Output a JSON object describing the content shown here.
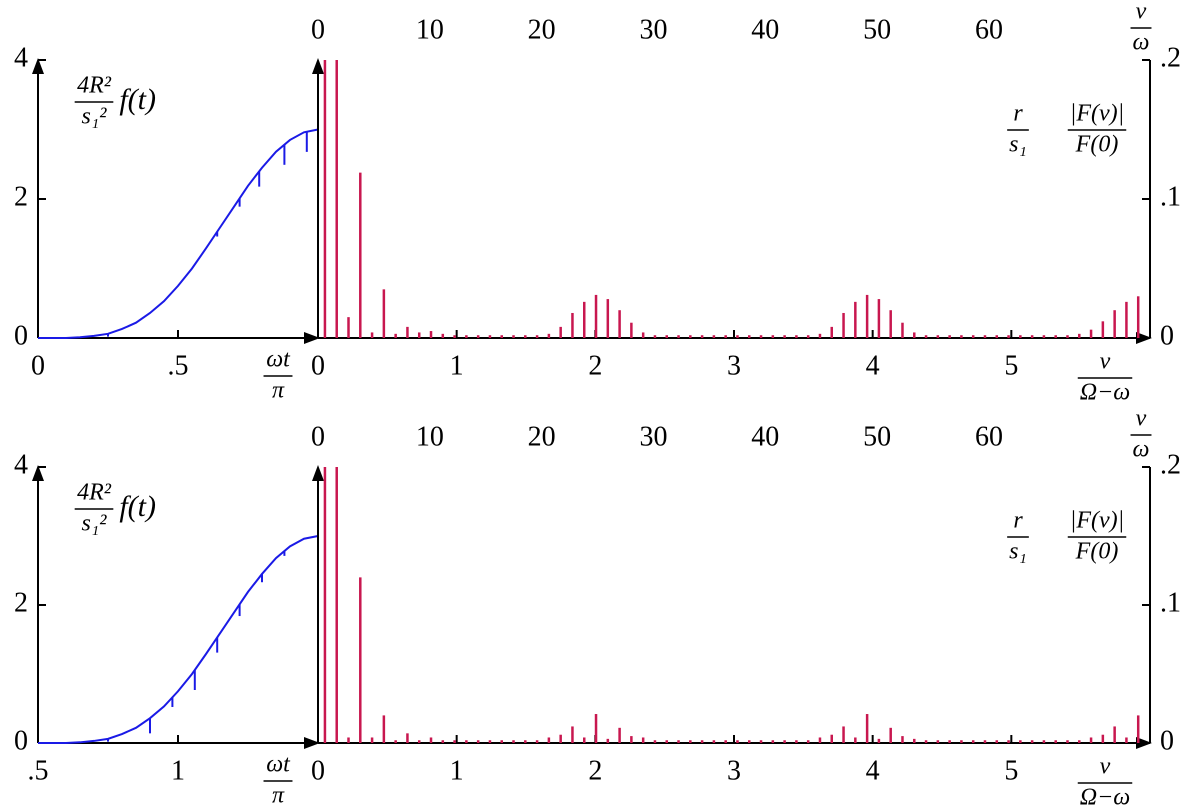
{
  "chart_data": [
    {
      "type": "line",
      "color": "#1a1ae6",
      "x": [
        0,
        0.05,
        0.1,
        0.15,
        0.2,
        0.25,
        0.3,
        0.35,
        0.4,
        0.45,
        0.5,
        0.55,
        0.6,
        0.65,
        0.7,
        0.75,
        0.8,
        0.85,
        0.9,
        0.95,
        1
      ],
      "values": [
        0,
        0,
        0,
        0.01,
        0.03,
        0.06,
        0.13,
        0.22,
        0.36,
        0.53,
        0.75,
        1.0,
        1.29,
        1.59,
        1.89,
        2.19,
        2.45,
        2.68,
        2.85,
        2.96,
        3
      ],
      "drop_x": [
        0.25,
        0.64,
        0.72,
        0.79,
        0.88,
        0.96
      ],
      "drop_values": [
        0.04,
        0.07,
        0.12,
        0.22,
        0.29,
        0.29
      ],
      "xlim": [
        0,
        1
      ],
      "xticks": [
        0,
        {
          "value": 0.5,
          "label": ".5"
        }
      ],
      "ylim": [
        0,
        4
      ],
      "yticks": [
        0,
        2,
        4
      ],
      "xlabel": {
        "num": "ωt",
        "den": "π"
      },
      "ylabel": {
        "num": "4R²",
        "den": "s₁²",
        "text": "f(t)"
      }
    },
    {
      "type": "bar",
      "color": "#c8174f",
      "x": [
        0.05,
        0.135,
        0.22,
        0.305,
        0.39,
        0.475,
        0.56,
        0.645,
        0.73,
        0.815,
        0.9,
        0.985,
        1.07,
        1.155,
        1.24,
        1.325,
        1.41,
        1.495,
        1.58,
        1.665,
        1.75,
        1.835,
        1.92,
        2.005,
        2.09,
        2.175,
        2.26,
        2.345,
        2.43,
        2.515,
        2.6,
        2.685,
        2.77,
        2.855,
        2.94,
        3.025,
        3.11,
        3.195,
        3.28,
        3.365,
        3.45,
        3.535,
        3.62,
        3.705,
        3.79,
        3.875,
        3.96,
        4.045,
        4.13,
        4.215,
        4.3,
        4.385,
        4.47,
        4.555,
        4.64,
        4.725,
        4.81,
        4.895,
        4.98,
        5.065,
        5.15,
        5.235,
        5.32,
        5.405,
        5.49,
        5.575,
        5.66,
        5.745,
        5.83,
        5.915
      ],
      "values": [
        0.2,
        0.2,
        0.015,
        0.119,
        0.004,
        0.035,
        0.003,
        0.008,
        0.004,
        0.005,
        0.003,
        0.002,
        0.002,
        0.002,
        0.002,
        0.002,
        0.002,
        0.002,
        0.002,
        0.003,
        0.008,
        0.018,
        0.026,
        0.031,
        0.028,
        0.02,
        0.011,
        0.004,
        0.002,
        0.002,
        0.002,
        0.002,
        0.002,
        0.002,
        0.002,
        0.002,
        0.002,
        0.002,
        0.002,
        0.002,
        0.002,
        0.002,
        0.003,
        0.008,
        0.018,
        0.026,
        0.031,
        0.028,
        0.02,
        0.011,
        0.004,
        0.002,
        0.002,
        0.002,
        0.002,
        0.002,
        0.002,
        0.002,
        0.002,
        0.002,
        0.002,
        0.002,
        0.002,
        0.002,
        0.003,
        0.006,
        0.012,
        0.02,
        0.026,
        0.03
      ],
      "xlim": [
        0,
        6
      ],
      "xticks": [
        0,
        1,
        2,
        3,
        4,
        5
      ],
      "x2lim": [
        0,
        74.4
      ],
      "x2ticks": [
        0,
        10,
        20,
        30,
        40,
        50,
        60
      ],
      "ylim": [
        0,
        0.2
      ],
      "yticks": [
        0,
        {
          "value": 0.1,
          "label": ".1"
        },
        {
          "value": 0.2,
          "label": ".2"
        }
      ],
      "xlabel": {
        "num": "ν",
        "den": "Ω−ω"
      },
      "x2label": {
        "num": "ν",
        "den": "ω"
      },
      "ylabel": [
        {
          "num": "r",
          "den": "s₁"
        },
        {
          "num": "|F(ν)|",
          "den": "F(0)"
        }
      ]
    },
    {
      "type": "line",
      "color": "#1a1ae6",
      "x": [
        0.5,
        0.55,
        0.6,
        0.65,
        0.7,
        0.75,
        0.8,
        0.85,
        0.9,
        0.95,
        1.0,
        1.05,
        1.1,
        1.15,
        1.2,
        1.25,
        1.3,
        1.35,
        1.4,
        1.45,
        1.5
      ],
      "values": [
        0,
        0,
        0,
        0.01,
        0.03,
        0.06,
        0.13,
        0.22,
        0.36,
        0.53,
        0.75,
        1.0,
        1.29,
        1.59,
        1.89,
        2.19,
        2.45,
        2.68,
        2.85,
        2.96,
        3
      ],
      "drop_x": [
        0.75,
        0.9,
        0.98,
        1.06,
        1.14,
        1.22,
        1.3,
        1.38
      ],
      "drop_values": [
        0.04,
        0.22,
        0.14,
        0.29,
        0.22,
        0.17,
        0.12,
        0.07
      ],
      "xlim": [
        0.5,
        1.5
      ],
      "xticks": [
        {
          "value": 0.5,
          "label": ".5"
        },
        1
      ],
      "ylim": [
        0,
        4
      ],
      "yticks": [
        0,
        2,
        4
      ],
      "xlabel": {
        "num": "ωt",
        "den": "π"
      },
      "ylabel": {
        "num": "4R²",
        "den": "s₁²",
        "text": "f(t)"
      }
    },
    {
      "type": "bar",
      "color": "#c8174f",
      "x": [
        0.05,
        0.135,
        0.22,
        0.305,
        0.39,
        0.475,
        0.56,
        0.645,
        0.73,
        0.815,
        0.9,
        0.985,
        1.07,
        1.155,
        1.24,
        1.325,
        1.41,
        1.495,
        1.58,
        1.665,
        1.75,
        1.835,
        1.92,
        2.005,
        2.09,
        2.175,
        2.26,
        2.345,
        2.43,
        2.515,
        2.6,
        2.685,
        2.77,
        2.855,
        2.94,
        3.025,
        3.11,
        3.195,
        3.28,
        3.365,
        3.45,
        3.535,
        3.62,
        3.705,
        3.79,
        3.875,
        3.96,
        4.045,
        4.13,
        4.215,
        4.3,
        4.385,
        4.47,
        4.555,
        4.64,
        4.725,
        4.81,
        4.895,
        4.98,
        5.065,
        5.15,
        5.235,
        5.32,
        5.405,
        5.49,
        5.575,
        5.66,
        5.745,
        5.83,
        5.915
      ],
      "values": [
        0.2,
        0.2,
        0.004,
        0.12,
        0.004,
        0.02,
        0.002,
        0.007,
        0.002,
        0.004,
        0.002,
        0.002,
        0.002,
        0.002,
        0.002,
        0.002,
        0.002,
        0.002,
        0.002,
        0.004,
        0.006,
        0.012,
        0.004,
        0.021,
        0.003,
        0.011,
        0.005,
        0.004,
        0.002,
        0.002,
        0.002,
        0.002,
        0.002,
        0.002,
        0.002,
        0.002,
        0.002,
        0.002,
        0.002,
        0.002,
        0.002,
        0.002,
        0.004,
        0.006,
        0.012,
        0.004,
        0.021,
        0.003,
        0.011,
        0.005,
        0.003,
        0.002,
        0.002,
        0.002,
        0.002,
        0.002,
        0.002,
        0.002,
        0.002,
        0.002,
        0.002,
        0.002,
        0.002,
        0.002,
        0.002,
        0.004,
        0.006,
        0.012,
        0.004,
        0.02
      ],
      "xlim": [
        0,
        6
      ],
      "xticks": [
        0,
        1,
        2,
        3,
        4,
        5
      ],
      "x2lim": [
        0,
        74.4
      ],
      "x2ticks": [
        0,
        10,
        20,
        30,
        40,
        50,
        60
      ],
      "ylim": [
        0,
        0.2
      ],
      "yticks": [
        0,
        {
          "value": 0.1,
          "label": ".1"
        },
        {
          "value": 0.2,
          "label": ".2"
        }
      ],
      "xlabel": {
        "num": "ν",
        "den": "Ω−ω"
      },
      "x2label": {
        "num": "ν",
        "den": "ω"
      },
      "ylabel": [
        {
          "num": "r",
          "den": "s₁"
        },
        {
          "num": "|F(ν)|",
          "den": "F(0)"
        }
      ]
    }
  ]
}
